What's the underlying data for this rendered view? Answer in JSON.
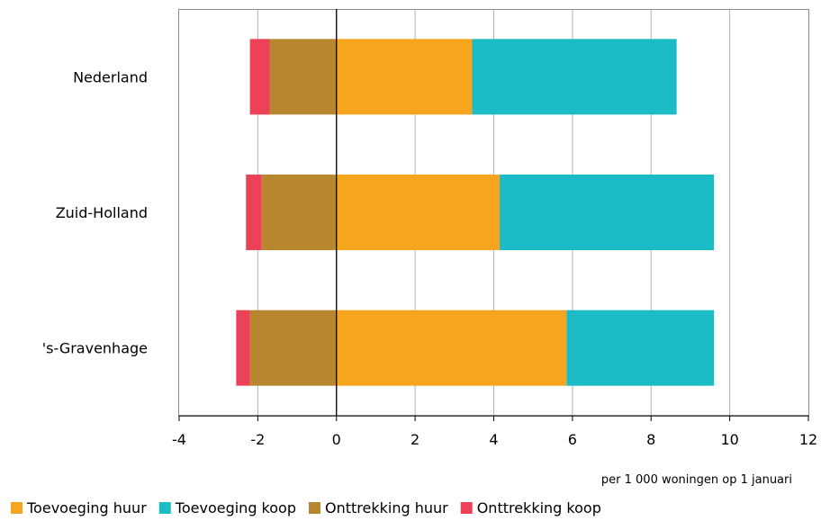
{
  "chart_data": {
    "type": "bar",
    "orientation": "horizontal",
    "stacked": true,
    "categories": [
      "Nederland",
      "Zuid-Holland",
      "'s-Gravenhage"
    ],
    "series": [
      {
        "name": "Toevoeging huur",
        "color": "#f7a51e",
        "values": [
          3.45,
          4.15,
          5.85
        ]
      },
      {
        "name": "Toevoeging koop",
        "color": "#1cbcc7",
        "values": [
          5.2,
          5.45,
          3.75
        ]
      },
      {
        "name": "Onttrekking huur",
        "color": "#b8862f",
        "values": [
          -1.7,
          -1.9,
          -2.2
        ]
      },
      {
        "name": "Onttrekking koop",
        "color": "#ec4156",
        "values": [
          -0.5,
          -0.4,
          -0.35
        ]
      }
    ],
    "xlim": [
      -4,
      12
    ],
    "xticks": [
      -4,
      -2,
      0,
      2,
      4,
      6,
      8,
      10,
      12
    ],
    "xlabel": "per 1 000 woningen op 1 januari",
    "grid": true,
    "legend_position": "bottom"
  }
}
